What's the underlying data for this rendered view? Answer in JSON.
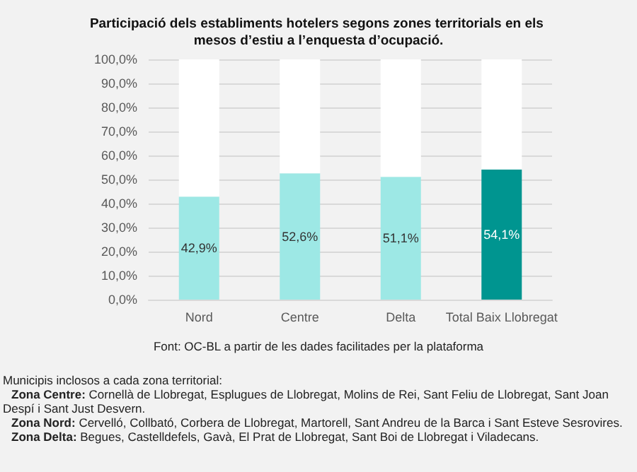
{
  "chart_data": {
    "type": "bar",
    "stacked": true,
    "title": "Participació dels establiments hotelers segons zones territorials en els mesos d’estiu a l’enquesta d’ocupació.",
    "categories": [
      "Nord",
      "Centre",
      "Delta",
      "Total Baix Llobregat"
    ],
    "series": [
      {
        "colors": [
          "#9de8e5",
          "#9de8e5",
          "#9de8e5",
          "#009590"
        ],
        "values": [
          42.9,
          52.6,
          51.1,
          54.1
        ],
        "value_labels": [
          "42,9%",
          "52,6%",
          "51,1%",
          "54,1%"
        ]
      },
      {
        "color": "#ffffff",
        "values": [
          57.1,
          47.4,
          48.9,
          45.9
        ]
      }
    ],
    "ylim": [
      0,
      100
    ],
    "yticks": [
      {
        "value": 0,
        "label": "0,0%"
      },
      {
        "value": 10,
        "label": "10,0%"
      },
      {
        "value": 20,
        "label": "20,0%"
      },
      {
        "value": 30,
        "label": "30,0%"
      },
      {
        "value": 40,
        "label": "40,0%"
      },
      {
        "value": 50,
        "label": "50,0%"
      },
      {
        "value": 60,
        "label": "60,0%"
      },
      {
        "value": 70,
        "label": "70,0%"
      },
      {
        "value": 80,
        "label": "80,0%"
      },
      {
        "value": 90,
        "label": "90,0%"
      },
      {
        "value": 100,
        "label": "100,0%"
      }
    ],
    "grid": "y",
    "annotations": [
      "Font: OC-BL a partir de les dades facilitades per la plataforma",
      "Municipis inclosos a cada zona territorial:",
      "Zona Centre: Cornellà de Llobregat, Esplugues de Llobregat, Molins de Rei, Sant Feliu de Llobregat, Sant Joan Despí i Sant Just Desvern.",
      "Zona Nord: Cervelló, Collbató, Corbera de Llobregat, Martorell, Sant Andreu de la Barca i Sant Esteve Sesrovires.",
      "Zona Delta: Begues, Castelldefels, Gavà, El Prat de Llobregat, Sant Boi de Llobregat i Viladecans."
    ]
  }
}
